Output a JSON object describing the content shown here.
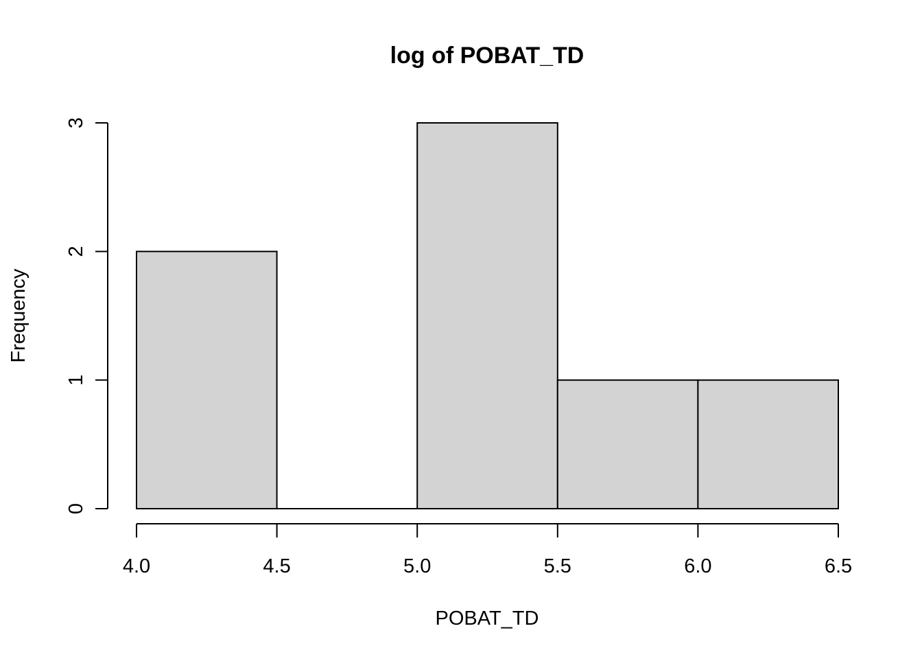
{
  "chart_data": {
    "type": "bar",
    "title": "log of POBAT_TD",
    "xlabel": "POBAT_TD",
    "ylabel": "Frequency",
    "bins": [
      {
        "start": 4.0,
        "end": 4.5,
        "count": 2
      },
      {
        "start": 4.5,
        "end": 5.0,
        "count": 0
      },
      {
        "start": 5.0,
        "end": 5.5,
        "count": 3
      },
      {
        "start": 5.5,
        "end": 6.0,
        "count": 1
      },
      {
        "start": 6.0,
        "end": 6.5,
        "count": 1
      }
    ],
    "xticks": [
      "4.0",
      "4.5",
      "5.0",
      "5.5",
      "6.0",
      "6.5"
    ],
    "yticks": [
      "0",
      "1",
      "2",
      "3"
    ],
    "xlim": [
      4.0,
      6.5
    ],
    "ylim": [
      0,
      3
    ],
    "grid": false,
    "bar_color": "#d3d3d3"
  }
}
